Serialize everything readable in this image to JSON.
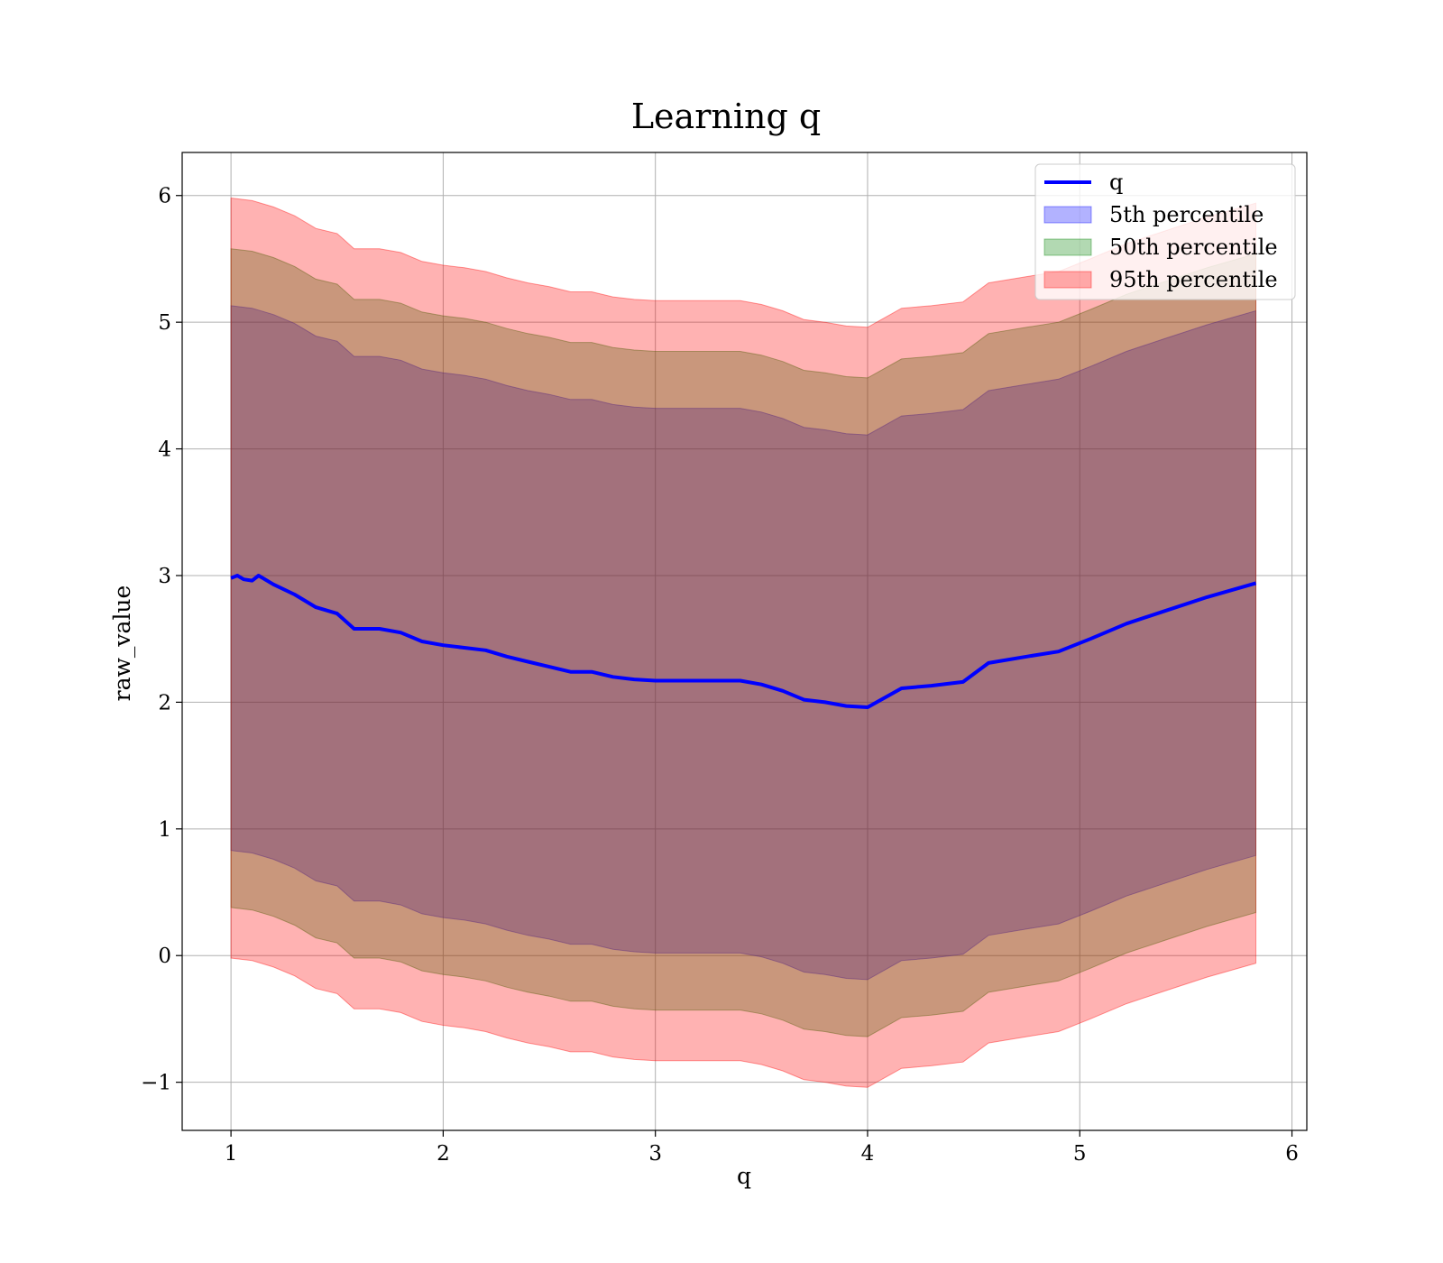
{
  "chart_data": {
    "type": "area",
    "title": "Learning q",
    "xlabel": "q",
    "ylabel": "raw_value",
    "xlim": [
      0.77,
      6.07
    ],
    "ylim": [
      -1.38,
      6.34
    ],
    "xticks": [
      1,
      2,
      3,
      4,
      5,
      6
    ],
    "yticks": [
      -1,
      0,
      1,
      2,
      3,
      4,
      5,
      6
    ],
    "grid": true,
    "legend_position": "top-right",
    "series": [
      {
        "name": "q",
        "kind": "line",
        "color": "#0000ff",
        "x": [
          1.0,
          1.03,
          1.06,
          1.1,
          1.13,
          1.2,
          1.3,
          1.4,
          1.5,
          1.58,
          1.7,
          1.8,
          1.9,
          2.0,
          2.1,
          2.2,
          2.3,
          2.4,
          2.5,
          2.6,
          2.7,
          2.8,
          2.9,
          3.0,
          3.1,
          3.2,
          3.3,
          3.4,
          3.5,
          3.6,
          3.7,
          3.8,
          3.9,
          4.0,
          4.16,
          4.3,
          4.45,
          4.57,
          4.75,
          4.9,
          5.05,
          5.22,
          5.4,
          5.6,
          5.83
        ],
        "y": [
          2.98,
          3.0,
          2.97,
          2.96,
          3.0,
          2.93,
          2.85,
          2.75,
          2.7,
          2.58,
          2.58,
          2.55,
          2.48,
          2.45,
          2.43,
          2.41,
          2.36,
          2.32,
          2.28,
          2.24,
          2.24,
          2.2,
          2.18,
          2.17,
          2.17,
          2.17,
          2.17,
          2.17,
          2.14,
          2.09,
          2.02,
          2.0,
          1.97,
          1.96,
          2.11,
          2.13,
          2.16,
          2.31,
          2.36,
          2.4,
          2.5,
          2.62,
          2.72,
          2.83,
          2.94
        ]
      },
      {
        "name": "5th percentile",
        "kind": "band",
        "color": "#0000ff",
        "opacity": 0.3,
        "x": [
          1.0,
          1.1,
          1.2,
          1.3,
          1.4,
          1.5,
          1.58,
          1.7,
          1.8,
          1.9,
          2.0,
          2.1,
          2.2,
          2.3,
          2.4,
          2.5,
          2.6,
          2.7,
          2.8,
          2.9,
          3.0,
          3.1,
          3.2,
          3.3,
          3.4,
          3.5,
          3.6,
          3.7,
          3.8,
          3.9,
          4.0,
          4.16,
          4.3,
          4.45,
          4.57,
          4.75,
          4.9,
          5.05,
          5.22,
          5.4,
          5.6,
          5.83
        ],
        "lower": [
          0.83,
          0.81,
          0.76,
          0.69,
          0.59,
          0.55,
          0.43,
          0.43,
          0.4,
          0.33,
          0.3,
          0.28,
          0.25,
          0.2,
          0.16,
          0.13,
          0.09,
          0.09,
          0.05,
          0.03,
          0.02,
          0.02,
          0.02,
          0.02,
          0.02,
          -0.01,
          -0.06,
          -0.13,
          -0.15,
          -0.18,
          -0.19,
          -0.04,
          -0.02,
          0.01,
          0.16,
          0.21,
          0.25,
          0.35,
          0.47,
          0.57,
          0.68,
          0.79
        ],
        "upper": [
          5.13,
          5.11,
          5.06,
          4.99,
          4.89,
          4.85,
          4.73,
          4.73,
          4.7,
          4.63,
          4.6,
          4.58,
          4.55,
          4.5,
          4.46,
          4.43,
          4.39,
          4.39,
          4.35,
          4.33,
          4.32,
          4.32,
          4.32,
          4.32,
          4.32,
          4.29,
          4.24,
          4.17,
          4.15,
          4.12,
          4.11,
          4.26,
          4.28,
          4.31,
          4.46,
          4.51,
          4.55,
          4.65,
          4.77,
          4.87,
          4.98,
          5.09
        ]
      },
      {
        "name": "50th percentile",
        "kind": "band",
        "color": "#008000",
        "opacity": 0.3,
        "x": [
          1.0,
          1.1,
          1.2,
          1.3,
          1.4,
          1.5,
          1.58,
          1.7,
          1.8,
          1.9,
          2.0,
          2.1,
          2.2,
          2.3,
          2.4,
          2.5,
          2.6,
          2.7,
          2.8,
          2.9,
          3.0,
          3.1,
          3.2,
          3.3,
          3.4,
          3.5,
          3.6,
          3.7,
          3.8,
          3.9,
          4.0,
          4.16,
          4.3,
          4.45,
          4.57,
          4.75,
          4.9,
          5.05,
          5.22,
          5.4,
          5.6,
          5.83
        ],
        "lower": [
          0.38,
          0.36,
          0.31,
          0.24,
          0.14,
          0.1,
          -0.02,
          -0.02,
          -0.05,
          -0.12,
          -0.15,
          -0.17,
          -0.2,
          -0.25,
          -0.29,
          -0.32,
          -0.36,
          -0.36,
          -0.4,
          -0.42,
          -0.43,
          -0.43,
          -0.43,
          -0.43,
          -0.43,
          -0.46,
          -0.51,
          -0.58,
          -0.6,
          -0.63,
          -0.64,
          -0.49,
          -0.47,
          -0.44,
          -0.29,
          -0.24,
          -0.2,
          -0.1,
          0.02,
          0.12,
          0.23,
          0.34
        ],
        "upper": [
          5.58,
          5.56,
          5.51,
          5.44,
          5.34,
          5.3,
          5.18,
          5.18,
          5.15,
          5.08,
          5.05,
          5.03,
          5.0,
          4.95,
          4.91,
          4.88,
          4.84,
          4.84,
          4.8,
          4.78,
          4.77,
          4.77,
          4.77,
          4.77,
          4.77,
          4.74,
          4.69,
          4.62,
          4.6,
          4.57,
          4.56,
          4.71,
          4.73,
          4.76,
          4.91,
          4.96,
          5.0,
          5.1,
          5.22,
          5.32,
          5.43,
          5.54
        ]
      },
      {
        "name": "95th percentile",
        "kind": "band",
        "color": "#ff0000",
        "opacity": 0.3,
        "x": [
          1.0,
          1.1,
          1.2,
          1.3,
          1.4,
          1.5,
          1.58,
          1.7,
          1.8,
          1.9,
          2.0,
          2.1,
          2.2,
          2.3,
          2.4,
          2.5,
          2.6,
          2.7,
          2.8,
          2.9,
          3.0,
          3.1,
          3.2,
          3.3,
          3.4,
          3.5,
          3.6,
          3.7,
          3.8,
          3.9,
          4.0,
          4.16,
          4.3,
          4.45,
          4.57,
          4.75,
          4.9,
          5.05,
          5.22,
          5.4,
          5.6,
          5.83
        ],
        "lower": [
          -0.02,
          -0.04,
          -0.09,
          -0.16,
          -0.26,
          -0.3,
          -0.42,
          -0.42,
          -0.45,
          -0.52,
          -0.55,
          -0.57,
          -0.6,
          -0.65,
          -0.69,
          -0.72,
          -0.76,
          -0.76,
          -0.8,
          -0.82,
          -0.83,
          -0.83,
          -0.83,
          -0.83,
          -0.83,
          -0.86,
          -0.91,
          -0.98,
          -1.0,
          -1.03,
          -1.04,
          -0.89,
          -0.87,
          -0.84,
          -0.69,
          -0.64,
          -0.6,
          -0.5,
          -0.38,
          -0.28,
          -0.17,
          -0.06
        ],
        "upper": [
          5.98,
          5.96,
          5.91,
          5.84,
          5.74,
          5.7,
          5.58,
          5.58,
          5.55,
          5.48,
          5.45,
          5.43,
          5.4,
          5.35,
          5.31,
          5.28,
          5.24,
          5.24,
          5.2,
          5.18,
          5.17,
          5.17,
          5.17,
          5.17,
          5.17,
          5.14,
          5.09,
          5.02,
          5.0,
          4.97,
          4.96,
          5.11,
          5.13,
          5.16,
          5.31,
          5.36,
          5.4,
          5.5,
          5.62,
          5.72,
          5.83,
          5.94
        ]
      }
    ]
  }
}
